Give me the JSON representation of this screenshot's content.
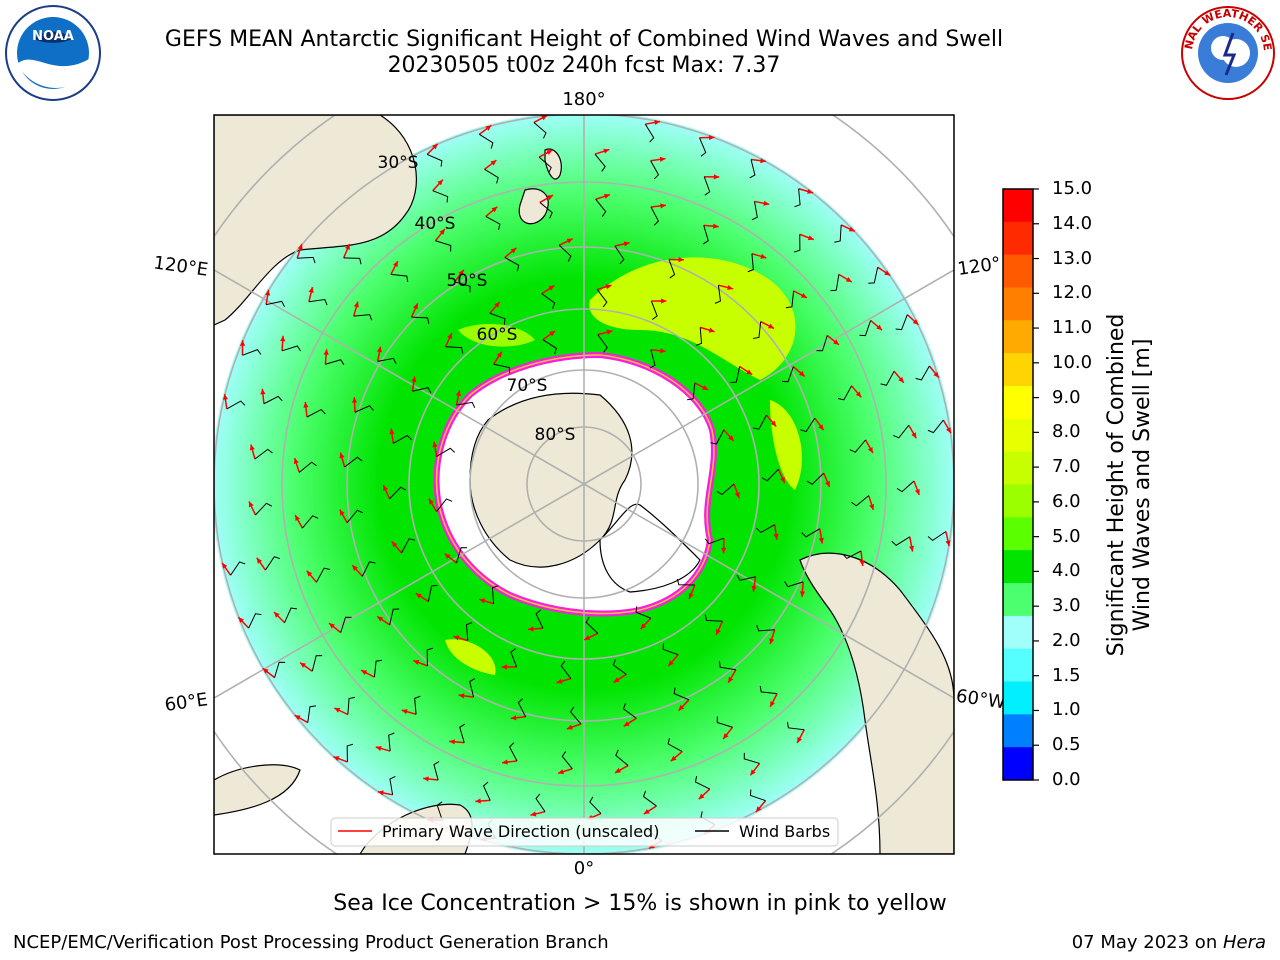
{
  "title": {
    "line1": "GEFS MEAN Antarctic Significant Height of Combined Wind Waves and Swell",
    "line2": "20230505 t00z 240h fcst   Max: 7.37"
  },
  "map": {
    "projection": "south-polar-stereographic",
    "longitude_labels": {
      "top": "180°",
      "left_upper": "120°E",
      "right_upper": "120°",
      "left_lower": "60°E",
      "right_lower": "60°W",
      "bottom": "0°"
    },
    "latitude_labels": [
      "30°S",
      "40°S",
      "50°S",
      "60°S",
      "70°S",
      "80°S"
    ],
    "colors": {
      "land": "#ede9d6",
      "ice_edge": "#f61ee0",
      "ocean": "#ffffff",
      "grid": "#b0b0b0"
    }
  },
  "legend": {
    "wave_direction": "Primary Wave Direction (unscaled)",
    "wind_barbs": "Wind Barbs"
  },
  "colorbar": {
    "label_line1": "Significant Height of Combined",
    "label_line2": "Wind Waves and Swell [m]",
    "ticks": [
      "15.0",
      "14.0",
      "13.0",
      "12.0",
      "11.0",
      "10.0",
      "9.0",
      "8.0",
      "7.0",
      "6.0",
      "5.0",
      "4.0",
      "3.0",
      "2.0",
      "1.5",
      "1.0",
      "0.5",
      "0.0"
    ],
    "colors_top_to_bottom": [
      "#ff0000",
      "#ff2a00",
      "#ff5a00",
      "#ff8000",
      "#ffaa00",
      "#ffd400",
      "#ffff00",
      "#e8ff00",
      "#c8ff00",
      "#9cff00",
      "#5aff00",
      "#00e400",
      "#4cff6e",
      "#a0fffa",
      "#55ffff",
      "#00f0ff",
      "#0080ff",
      "#0000ff"
    ]
  },
  "seaice_note": "Sea Ice Concentration > 15% is shown in pink to yellow",
  "footer": {
    "left": "NCEP/EMC/Verification Post Processing Product Generation Branch",
    "right_date": "07 May 2023 on ",
    "right_machine": "Hera"
  },
  "logos": {
    "left": "NOAA",
    "right": "NATIONAL WEATHER SERVICE"
  },
  "chart_data": {
    "type": "heatmap",
    "variable": "Significant Height of Combined Wind Waves and Swell",
    "units": "m",
    "max": 7.37,
    "color_levels": [
      0.0,
      0.5,
      1.0,
      1.5,
      2.0,
      3.0,
      4.0,
      5.0,
      6.0,
      7.0,
      8.0,
      9.0,
      10.0,
      11.0,
      12.0,
      13.0,
      14.0,
      15.0
    ]
  }
}
